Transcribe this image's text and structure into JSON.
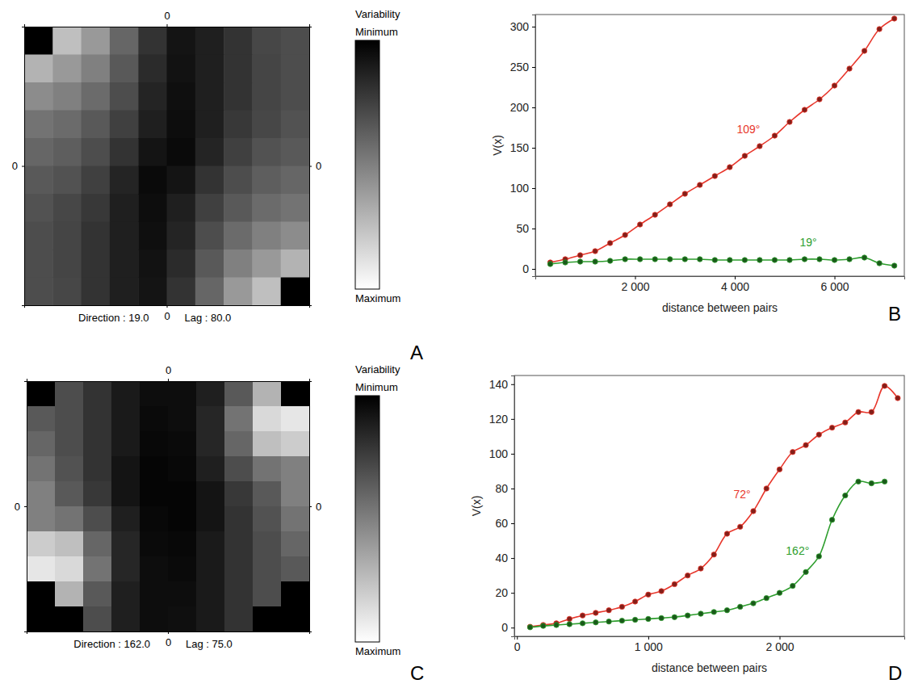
{
  "chart_data": [
    {
      "type": "heatmap",
      "panel_label": "A",
      "xlim": [
        -5,
        5
      ],
      "xticks": [
        0
      ],
      "ylim": [
        -5,
        5
      ],
      "yticks": [
        0
      ],
      "cells": [
        [
          null,
          0.75,
          0.6,
          0.4,
          0.2,
          0.08,
          0.12,
          0.2,
          0.28,
          0.3
        ],
        [
          0.7,
          0.6,
          0.5,
          0.35,
          0.17,
          0.07,
          0.12,
          0.2,
          0.27,
          0.3
        ],
        [
          0.55,
          0.5,
          0.42,
          0.3,
          0.14,
          0.06,
          0.12,
          0.2,
          0.27,
          0.3
        ],
        [
          0.45,
          0.42,
          0.35,
          0.25,
          0.12,
          0.05,
          0.12,
          0.22,
          0.28,
          0.32
        ],
        [
          0.4,
          0.37,
          0.3,
          0.2,
          0.08,
          0.04,
          0.14,
          0.25,
          0.32,
          0.35
        ],
        [
          0.35,
          0.32,
          0.25,
          0.14,
          0.04,
          0.08,
          0.2,
          0.3,
          0.37,
          0.4
        ],
        [
          0.32,
          0.28,
          0.22,
          0.12,
          0.05,
          0.12,
          0.25,
          0.35,
          0.42,
          0.45
        ],
        [
          0.3,
          0.27,
          0.2,
          0.12,
          0.06,
          0.14,
          0.3,
          0.42,
          0.5,
          0.55
        ],
        [
          0.3,
          0.27,
          0.2,
          0.12,
          0.07,
          0.17,
          0.35,
          0.5,
          0.6,
          0.7
        ],
        [
          0.3,
          0.28,
          0.2,
          0.12,
          0.08,
          0.2,
          0.4,
          0.6,
          0.75,
          null
        ]
      ],
      "colorbar": {
        "title": "Variability",
        "range": [
          0,
          1
        ],
        "ticks": [
          {
            "value": 0,
            "label": "Minimum"
          },
          {
            "value": 1,
            "label": "Maximum"
          }
        ]
      },
      "annotations": [
        "Direction : 19.0",
        "Lag : 80.0"
      ]
    },
    {
      "type": "line",
      "panel_label": "B",
      "x_label": "distance between pairs",
      "y_label": "V(x)",
      "xlim": [
        0,
        7400
      ],
      "xticks": [
        {
          "value": 2000,
          "label": "2 000"
        },
        {
          "value": 4000,
          "label": "4 000"
        },
        {
          "value": 6000,
          "label": "6 000"
        }
      ],
      "ylim": [
        -9,
        315
      ],
      "yticks": [
        0,
        50,
        100,
        150,
        200,
        250,
        300
      ],
      "marker": "circle",
      "series": [
        {
          "name": "109°",
          "color": "#e8372c",
          "x": [
            300,
            600,
            900,
            1200,
            1500,
            1800,
            2100,
            2400,
            2700,
            3000,
            3300,
            3600,
            3900,
            4200,
            4500,
            4800,
            5100,
            5400,
            5700,
            6000,
            6300,
            6600,
            6900,
            7200
          ],
          "values": [
            8,
            12,
            17,
            22,
            32,
            42,
            55,
            67,
            80,
            93,
            104,
            115,
            126,
            140,
            152,
            165,
            182,
            197,
            210,
            227,
            248,
            270,
            297,
            310
          ]
        },
        {
          "name": "19°",
          "color": "#2e9e2e",
          "x": [
            300,
            600,
            900,
            1200,
            1500,
            1800,
            2100,
            2400,
            2700,
            3000,
            3300,
            3600,
            3900,
            4200,
            4500,
            4800,
            5100,
            5400,
            5700,
            6000,
            6300,
            6600,
            6900,
            7200
          ],
          "values": [
            6,
            8,
            9,
            9,
            10,
            12,
            12,
            12,
            12,
            12,
            12,
            11,
            11,
            11,
            11,
            11,
            11,
            12,
            12,
            11,
            12,
            14,
            7,
            4
          ]
        }
      ]
    },
    {
      "type": "heatmap",
      "panel_label": "C",
      "xlim": [
        -5,
        5
      ],
      "xticks": [
        0
      ],
      "ylim": [
        -5,
        5
      ],
      "yticks": [
        0
      ],
      "cells": [
        [
          null,
          0.3,
          0.2,
          0.1,
          0.05,
          0.05,
          0.12,
          0.35,
          0.7,
          null
        ],
        [
          0.35,
          0.3,
          0.2,
          0.1,
          0.04,
          0.05,
          0.15,
          0.45,
          0.85,
          0.9
        ],
        [
          0.4,
          0.3,
          0.2,
          0.1,
          0.03,
          0.04,
          0.15,
          0.4,
          0.75,
          0.8
        ],
        [
          0.45,
          0.32,
          0.2,
          0.08,
          0.02,
          0.03,
          0.12,
          0.3,
          0.45,
          0.5
        ],
        [
          0.5,
          0.35,
          0.22,
          0.08,
          0.02,
          0.02,
          0.08,
          0.22,
          0.35,
          0.5
        ],
        [
          0.5,
          0.45,
          0.3,
          0.12,
          0.03,
          0.02,
          0.08,
          0.2,
          0.32,
          0.45
        ],
        [
          0.8,
          0.75,
          0.4,
          0.15,
          0.04,
          0.03,
          0.1,
          0.2,
          0.3,
          0.4
        ],
        [
          0.9,
          0.85,
          0.45,
          0.15,
          0.05,
          0.04,
          0.1,
          0.2,
          0.3,
          0.35
        ],
        [
          null,
          0.7,
          0.35,
          0.12,
          0.05,
          0.05,
          0.1,
          0.2,
          0.3,
          null
        ],
        [
          null,
          null,
          0.3,
          0.12,
          0.05,
          0.06,
          0.1,
          0.2,
          null,
          null
        ]
      ],
      "colorbar": {
        "title": "Variability",
        "range": [
          0,
          1
        ],
        "ticks": [
          {
            "value": 0,
            "label": "Minimum"
          },
          {
            "value": 1,
            "label": "Maximum"
          }
        ]
      },
      "annotations": [
        "Direction : 162.0",
        "Lag : 75.0"
      ]
    },
    {
      "type": "line",
      "panel_label": "D",
      "x_label": "distance between pairs",
      "y_label": "V(x)",
      "xlim": [
        -20,
        2950
      ],
      "xticks": [
        0,
        {
          "value": 1000,
          "label": "1 000"
        },
        {
          "value": 2000,
          "label": "2 000"
        }
      ],
      "ylim": [
        -5,
        145
      ],
      "yticks": [
        0,
        20,
        40,
        60,
        80,
        100,
        120,
        140
      ],
      "marker": "circle",
      "series": [
        {
          "name": "72°",
          "color": "#e8372c",
          "x": [
            100,
            200,
            300,
            400,
            500,
            600,
            700,
            800,
            900,
            1000,
            1100,
            1200,
            1300,
            1400,
            1500,
            1600,
            1700,
            1800,
            1900,
            2000,
            2100,
            2200,
            2300,
            2400,
            2500,
            2600,
            2700,
            2800,
            2900
          ],
          "values": [
            0.5,
            1.5,
            2.5,
            5,
            7,
            8.5,
            10,
            12,
            15,
            19,
            21,
            25,
            30,
            34,
            42,
            54,
            58,
            67,
            80,
            91,
            101,
            105,
            111,
            115,
            118,
            124,
            124,
            139,
            132
          ]
        },
        {
          "name": "162°",
          "color": "#2e9e2e",
          "x": [
            100,
            200,
            300,
            400,
            500,
            600,
            700,
            800,
            900,
            1000,
            1100,
            1200,
            1300,
            1400,
            1500,
            1600,
            1700,
            1800,
            1900,
            2000,
            2100,
            2200,
            2300,
            2400,
            2500,
            2600,
            2700,
            2800
          ],
          "values": [
            0.2,
            1,
            1.5,
            2,
            2.5,
            3,
            3.5,
            4,
            4.5,
            5,
            5.5,
            6,
            7,
            8,
            9,
            10,
            12,
            14,
            17,
            20,
            24,
            32,
            41,
            62,
            76,
            84,
            83,
            84
          ]
        }
      ]
    }
  ]
}
